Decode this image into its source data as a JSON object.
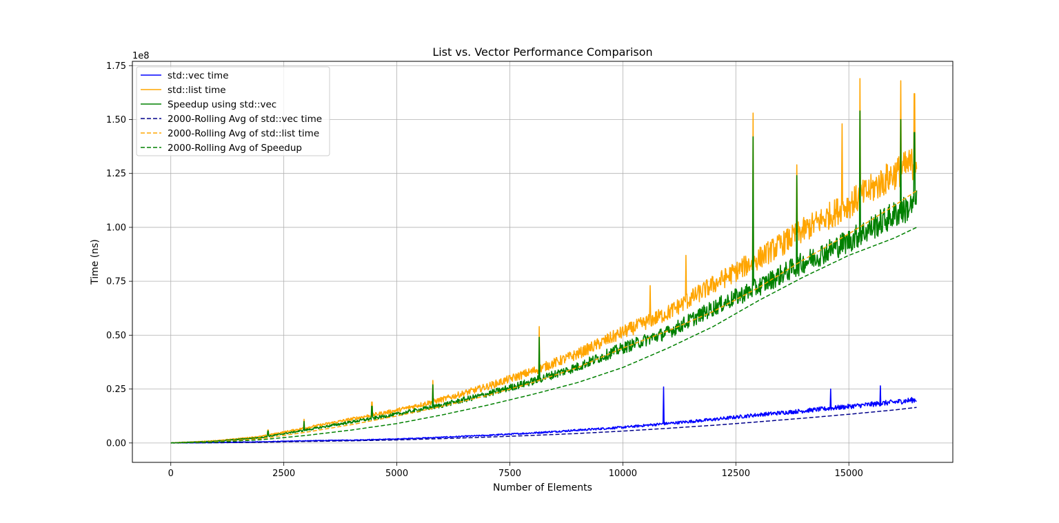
{
  "chart_data": {
    "type": "line",
    "title": "List vs. Vector Performance Comparison",
    "xlabel": "Number of Elements",
    "ylabel": "Time (ns)",
    "y_offset_text": "1e8",
    "xlim": [
      -850,
      17300
    ],
    "ylim": [
      -0.09,
      1.77
    ],
    "y_scale_factor": 100000000,
    "xticks": [
      0,
      2500,
      5000,
      7500,
      10000,
      12500,
      15000
    ],
    "xtick_labels": [
      "0",
      "2500",
      "5000",
      "7500",
      "10000",
      "12500",
      "15000"
    ],
    "yticks": [
      0.0,
      0.25,
      0.5,
      0.75,
      1.0,
      1.25,
      1.5,
      1.75
    ],
    "ytick_labels": [
      "0.00",
      "0.25",
      "0.50",
      "0.75",
      "1.00",
      "1.25",
      "1.50",
      "1.75"
    ],
    "grid": true,
    "legend_position": "top-left",
    "series": [
      {
        "name": "std::vec time",
        "color": "#0000ff",
        "style": "solid",
        "noisy": true,
        "x": [
          0,
          1000,
          2000,
          3000,
          4000,
          5000,
          6000,
          7000,
          8000,
          9000,
          10000,
          11000,
          12000,
          13000,
          14000,
          15000,
          16000,
          16500
        ],
        "y": [
          0.0,
          0.002,
          0.005,
          0.01,
          0.013,
          0.018,
          0.026,
          0.035,
          0.046,
          0.059,
          0.072,
          0.09,
          0.108,
          0.13,
          0.148,
          0.168,
          0.188,
          0.2
        ]
      },
      {
        "name": "std::list time",
        "color": "#ffa500",
        "style": "solid",
        "noisy": true,
        "x": [
          0,
          1000,
          2000,
          3000,
          4000,
          5000,
          6000,
          7000,
          8000,
          9000,
          10000,
          11000,
          12000,
          13000,
          14000,
          15000,
          16000,
          16500
        ],
        "y": [
          0.0,
          0.01,
          0.03,
          0.07,
          0.11,
          0.15,
          0.2,
          0.26,
          0.33,
          0.41,
          0.51,
          0.6,
          0.73,
          0.85,
          0.98,
          1.1,
          1.24,
          1.3
        ]
      },
      {
        "name": "Speedup using std::vec",
        "color": "#008000",
        "style": "solid",
        "noisy": true,
        "x": [
          0,
          1000,
          2000,
          3000,
          4000,
          5000,
          6000,
          7000,
          8000,
          9000,
          10000,
          11000,
          12000,
          13000,
          14000,
          15000,
          16000,
          16500
        ],
        "y": [
          0.0,
          0.008,
          0.025,
          0.06,
          0.097,
          0.132,
          0.174,
          0.225,
          0.284,
          0.351,
          0.438,
          0.51,
          0.622,
          0.72,
          0.832,
          0.932,
          1.052,
          1.1
        ]
      },
      {
        "name": "2000-Rolling Avg of std::vec time",
        "color": "#00008b",
        "style": "dashed",
        "x": [
          0,
          1000,
          2000,
          3000,
          4000,
          5000,
          6000,
          7000,
          8000,
          9000,
          10000,
          11000,
          12000,
          13000,
          14000,
          15000,
          16000,
          16500
        ],
        "y": [
          0.0,
          0.001,
          0.003,
          0.007,
          0.01,
          0.014,
          0.02,
          0.027,
          0.035,
          0.044,
          0.055,
          0.068,
          0.082,
          0.098,
          0.115,
          0.133,
          0.153,
          0.165
        ]
      },
      {
        "name": "2000-Rolling Avg of std::list time",
        "color": "#ffa500",
        "style": "dashed",
        "x": [
          0,
          1000,
          2000,
          3000,
          4000,
          5000,
          6000,
          7000,
          8000,
          9000,
          10000,
          11000,
          12000,
          13000,
          14000,
          15000,
          16000,
          16500
        ],
        "y": [
          0.0,
          0.006,
          0.02,
          0.05,
          0.085,
          0.125,
          0.17,
          0.22,
          0.28,
          0.35,
          0.44,
          0.52,
          0.61,
          0.72,
          0.85,
          0.97,
          1.1,
          1.17
        ]
      },
      {
        "name": "2000-Rolling Avg of Speedup",
        "color": "#008000",
        "style": "dashed",
        "x": [
          0,
          1000,
          2000,
          3000,
          4000,
          5000,
          6000,
          7000,
          8000,
          9000,
          10000,
          11000,
          12000,
          13000,
          14000,
          15000,
          16000,
          16500
        ],
        "y": [
          0.0,
          0.004,
          0.015,
          0.035,
          0.06,
          0.09,
          0.13,
          0.175,
          0.225,
          0.28,
          0.35,
          0.44,
          0.54,
          0.66,
          0.77,
          0.87,
          0.95,
          1.0
        ]
      }
    ],
    "spikes": [
      {
        "series": 1,
        "x": 2150,
        "y": 0.06
      },
      {
        "series": 1,
        "x": 2950,
        "y": 0.11
      },
      {
        "series": 1,
        "x": 4450,
        "y": 0.19
      },
      {
        "series": 1,
        "x": 5800,
        "y": 0.29
      },
      {
        "series": 1,
        "x": 8150,
        "y": 0.54
      },
      {
        "series": 1,
        "x": 10600,
        "y": 0.73
      },
      {
        "series": 1,
        "x": 11400,
        "y": 0.87
      },
      {
        "series": 1,
        "x": 12880,
        "y": 1.53
      },
      {
        "series": 1,
        "x": 13850,
        "y": 1.29
      },
      {
        "series": 1,
        "x": 14850,
        "y": 1.48
      },
      {
        "series": 1,
        "x": 15250,
        "y": 1.69
      },
      {
        "series": 1,
        "x": 16150,
        "y": 1.68
      },
      {
        "series": 1,
        "x": 16450,
        "y": 1.62
      },
      {
        "series": 2,
        "x": 2150,
        "y": 0.055
      },
      {
        "series": 2,
        "x": 2950,
        "y": 0.1
      },
      {
        "series": 2,
        "x": 4450,
        "y": 0.17
      },
      {
        "series": 2,
        "x": 5800,
        "y": 0.27
      },
      {
        "series": 2,
        "x": 8150,
        "y": 0.49
      },
      {
        "series": 2,
        "x": 12880,
        "y": 1.42
      },
      {
        "series": 2,
        "x": 13850,
        "y": 1.24
      },
      {
        "series": 2,
        "x": 15250,
        "y": 1.54
      },
      {
        "series": 2,
        "x": 16150,
        "y": 1.5
      },
      {
        "series": 2,
        "x": 16450,
        "y": 1.44
      },
      {
        "series": 0,
        "x": 10900,
        "y": 0.26
      },
      {
        "series": 0,
        "x": 14600,
        "y": 0.25
      },
      {
        "series": 0,
        "x": 15700,
        "y": 0.265
      }
    ]
  }
}
